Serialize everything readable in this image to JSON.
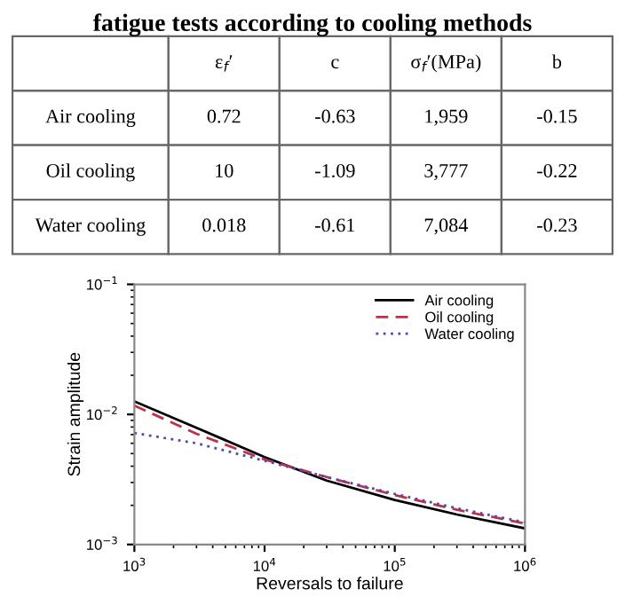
{
  "chart_data": [
    {
      "type": "other",
      "title": "fatigue tests according to cooling methods",
      "categories": [
        null,
        "ε$_{f}$′",
        "c",
        "σ$_{f}$′(MPa)",
        "b"
      ],
      "y_categories": [
        "Air cooling",
        "Oil cooling",
        "Water cooling"
      ],
      "cell_labels": [
        [
          "0.72",
          "-0.63",
          "1,959",
          "-0.15"
        ],
        [
          "10",
          "-1.09",
          "3,777",
          "-0.22"
        ],
        [
          "0.018",
          "-0.61",
          "7,084",
          "-0.23"
        ]
      ]
    },
    {
      "type": "line",
      "xlabel": "Reversals to failure",
      "ylabel": "Strain amplitude",
      "x": [
        1000,
        3000,
        10000,
        30000,
        100000,
        300000,
        1000000
      ],
      "series": [
        {
          "name": "Air cooling",
          "color": "#000000",
          "line_style": "solid",
          "values": [
            0.0126,
            0.0079,
            0.0047,
            0.0031,
            0.0022,
            0.0017,
            0.00133
          ]
        },
        {
          "name": "Oil cooling",
          "color": "#c0304a",
          "line_style": "dashed",
          "values": [
            0.0117,
            0.0071,
            0.0045,
            0.0033,
            0.0024,
            0.00185,
            0.00145
          ]
        },
        {
          "name": "Water cooling",
          "color": "#4b4bb0",
          "line_style": "dotted",
          "values": [
            0.0072,
            0.006,
            0.0044,
            0.0033,
            0.00245,
            0.0019,
            0.00148
          ]
        }
      ],
      "log": "xy",
      "xlim": [
        1000,
        1000000
      ],
      "ylim": [
        0.001,
        0.1
      ],
      "xticks": [
        {
          "value": 1000,
          "label": "10$^{3}$"
        },
        {
          "value": 10000,
          "label": "10$^{4}$"
        },
        {
          "value": 100000,
          "label": "10$^{5}$"
        },
        {
          "value": 1000000,
          "label": "10$^{6}$"
        }
      ],
      "yticks": [
        {
          "value": 0.001,
          "label": "10$^{−3}$"
        },
        {
          "value": 0.01,
          "label": "10$^{−2}$"
        },
        {
          "value": 0.1,
          "label": "10$^{−1}$"
        }
      ],
      "legend": "top right"
    }
  ]
}
